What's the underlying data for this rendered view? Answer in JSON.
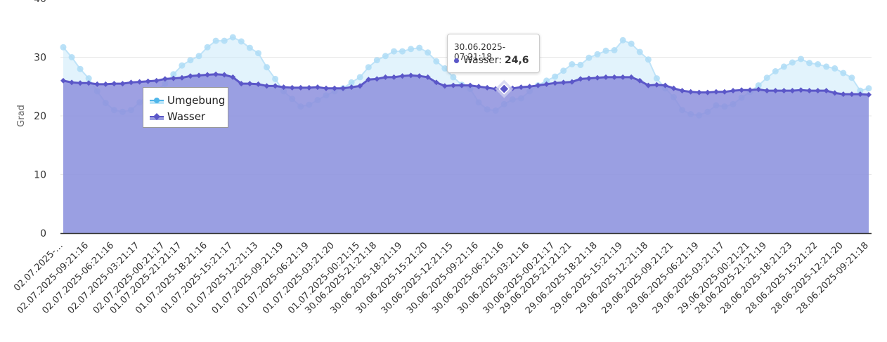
{
  "chart_data": {
    "type": "area",
    "title": "",
    "xlabel": "",
    "ylabel": "Grad",
    "ylim": [
      0,
      40
    ],
    "y_ticks": [
      0,
      10,
      20,
      30,
      40
    ],
    "grid": true,
    "legend_position": "top-left",
    "x_tick_labels": [
      "02.07.2025-…",
      "02.07.2025-09:21:16",
      "02.07.2025-06:21:16",
      "02.07.2025-03:21:17",
      "02.07.2025-00:21:17",
      "01.07.2025-21:21:17",
      "01.07.2025-18:21:16",
      "01.07.2025-15:21:17",
      "01.07.2025-12:21:13",
      "01.07.2025-09:21:19",
      "01.07.2025-06:21:19",
      "01.07.2025-03:21:20",
      "01.07.2025-00:21:15",
      "30.06.2025-21:21:18",
      "30.06.2025-18:21:19",
      "30.06.2025-15:21:20",
      "30.06.2025-12:21:15",
      "30.06.2025-09:21:16",
      "30.06.2025-06:21:16",
      "30.06.2025-03:21:16",
      "30.06.2025-00:21:17",
      "29.06.2025-21:21:21",
      "29.06.2025-18:21:18",
      "29.06.2025-15:21:19",
      "29.06.2025-12:21:18",
      "29.06.2025-09:21:21",
      "29.06.2025-06:21:19",
      "29.06.2025-03:21:17",
      "29.06.2025-00:21:21",
      "28.06.2025-21:21:19",
      "28.06.2025-18:21:23",
      "28.06.2025-15:21:22",
      "28.06.2025-12:21:20",
      "28.06.2025-09:21:18"
    ],
    "series": [
      {
        "name": "Umgebung",
        "color": "#8fd3f4",
        "values": [
          31.7,
          30,
          28,
          26.4,
          24.2,
          22.2,
          21,
          20.7,
          21,
          22.3,
          23.5,
          24.3,
          25.5,
          27.1,
          28.6,
          29.5,
          30.2,
          31.7,
          32.8,
          32.8,
          33.4,
          32.7,
          31.6,
          30.7,
          28.3,
          26.3,
          24.2,
          22.9,
          21.6,
          21.9,
          22.7,
          23.5,
          24.2,
          24.7,
          25.7,
          26.6,
          28.3,
          29.5,
          30.2,
          31,
          31,
          31.4,
          31.6,
          30.8,
          29.3,
          28.1,
          26.6,
          25.3,
          24.6,
          22.3,
          21.1,
          20.9,
          22,
          22.8,
          23,
          24.2,
          25.2,
          26,
          26.7,
          27.7,
          28.8,
          28.7,
          29.9,
          30.5,
          31.1,
          31.2,
          32.9,
          32.3,
          30.9,
          29.6,
          26.4,
          24.7,
          23.2,
          21,
          20.3,
          20.1,
          20.7,
          21.8,
          21.6,
          22,
          23.1,
          24.1,
          25.2,
          26.5,
          27.6,
          28.4,
          29.1,
          29.7,
          29,
          28.8,
          28.4,
          28.1,
          27.3,
          26.5,
          24.3,
          24.7
        ]
      },
      {
        "name": "Wasser",
        "color": "#5b57c8",
        "values": [
          26,
          25.7,
          25.6,
          25.6,
          25.4,
          25.4,
          25.5,
          25.5,
          25.7,
          25.8,
          25.9,
          26,
          26.3,
          26.4,
          26.5,
          26.8,
          26.9,
          27,
          27.1,
          27,
          26.6,
          25.5,
          25.5,
          25.4,
          25.1,
          25.1,
          24.9,
          24.8,
          24.8,
          24.8,
          24.9,
          24.7,
          24.7,
          24.7,
          24.9,
          25.1,
          26.2,
          26.3,
          26.6,
          26.6,
          26.8,
          26.9,
          26.8,
          26.6,
          25.7,
          25.1,
          25.2,
          25.2,
          25.2,
          25,
          24.8,
          24.6,
          24.6,
          24.7,
          24.9,
          25,
          25.2,
          25.4,
          25.6,
          25.7,
          25.8,
          26.3,
          26.4,
          26.5,
          26.6,
          26.6,
          26.6,
          26.6,
          26,
          25.2,
          25.3,
          25.2,
          24.7,
          24.3,
          24.1,
          24,
          24,
          24.1,
          24.1,
          24.3,
          24.4,
          24.4,
          24.5,
          24.3,
          24.3,
          24.3,
          24.3,
          24.4,
          24.3,
          24.3,
          24.3,
          23.9,
          23.7,
          23.7,
          23.7,
          23.6
        ]
      }
    ],
    "tooltip": {
      "title": "30.06.2025-07:21:18",
      "series_name": "Wasser:",
      "value": "24,6",
      "point_index": 52
    }
  }
}
